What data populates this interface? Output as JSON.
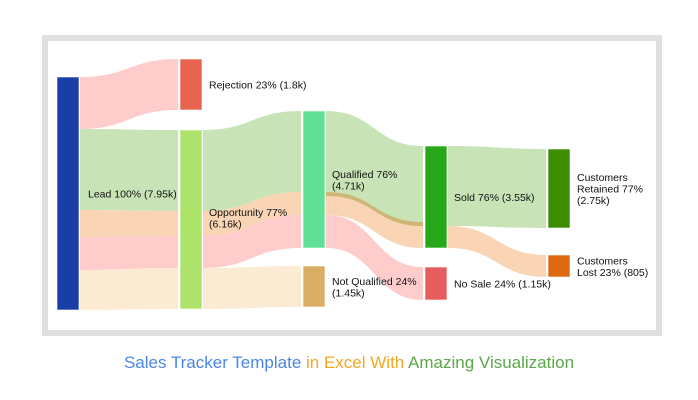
{
  "chart_data": {
    "type": "sankey",
    "nodes": [
      {
        "id": "lead",
        "label": [
          "Lead 100% (7.95k)"
        ],
        "value": 7.95,
        "color": "#1a3ea8"
      },
      {
        "id": "rejection",
        "label": [
          "Rejection 23% (1.8k)"
        ],
        "value": 1.8,
        "color": "#e8644f"
      },
      {
        "id": "opportunity",
        "label": [
          "Opportunity 77%",
          "(6.16k)"
        ],
        "value": 6.16,
        "color": "#ade36a"
      },
      {
        "id": "qualified",
        "label": [
          "Qualified 76%",
          "(4.71k)"
        ],
        "value": 4.71,
        "color": "#60e096"
      },
      {
        "id": "not_qualified",
        "label": [
          "Not Qualified 24%",
          "(1.45k)"
        ],
        "value": 1.45,
        "color": "#d8ae64"
      },
      {
        "id": "sold",
        "label": [
          "Sold 76% (3.55k)"
        ],
        "value": 3.55,
        "color": "#27a81b"
      },
      {
        "id": "no_sale",
        "label": [
          "No Sale 24% (1.15k)"
        ],
        "value": 1.15,
        "color": "#e55d5d"
      },
      {
        "id": "retained",
        "label": [
          "Customers",
          "Retained 77%",
          "(2.75k)"
        ],
        "value": 2.75,
        "color": "#3e8c00"
      },
      {
        "id": "lost",
        "label": [
          "Customers",
          "Lost 23% (805)"
        ],
        "value": 0.805,
        "color": "#dd6a10"
      }
    ],
    "links": [
      {
        "source": "lead",
        "target": "rejection",
        "value": 1.8
      },
      {
        "source": "lead",
        "target": "opportunity",
        "value": 6.16
      },
      {
        "source": "opportunity",
        "target": "qualified",
        "value": 4.71
      },
      {
        "source": "opportunity",
        "target": "not_qualified",
        "value": 1.45
      },
      {
        "source": "qualified",
        "target": "sold",
        "value": 3.55
      },
      {
        "source": "qualified",
        "target": "no_sale",
        "value": 1.15
      },
      {
        "source": "sold",
        "target": "retained",
        "value": 2.75
      },
      {
        "source": "sold",
        "target": "lost",
        "value": 0.805
      }
    ],
    "flow_colors": {
      "green": "#c8e3b6",
      "orange": "#f9d5b5",
      "pink": "#ffcccc",
      "beige": "#faebd2",
      "olive": "#cdb676"
    }
  },
  "caption": {
    "part1": "Sales Tracker Template",
    "part1_color": "#4a86e8",
    "part2": " in Excel With ",
    "part2_color": "#f5a623",
    "part3": "Amazing Visualization",
    "part3_color": "#5aa84a"
  }
}
